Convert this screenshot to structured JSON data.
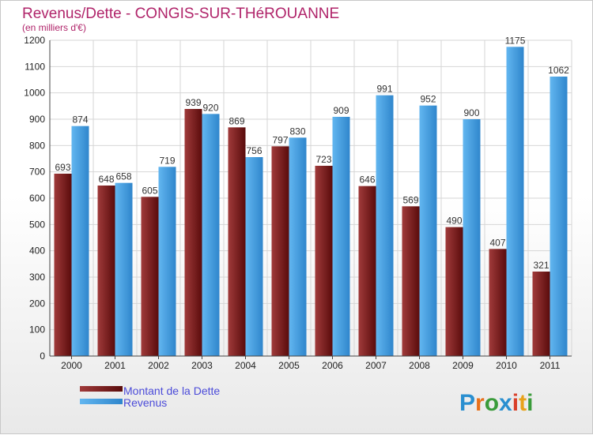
{
  "chart_data": {
    "type": "bar",
    "title": "Revenus/Dette - CONGIS-SUR-THéROUANNE",
    "subtitle": "(en milliers d'€)",
    "categories": [
      "2000",
      "2001",
      "2002",
      "2003",
      "2004",
      "2005",
      "2006",
      "2007",
      "2008",
      "2009",
      "2010",
      "2011"
    ],
    "series": [
      {
        "name": "Montant de la Dette",
        "color": "#7a1a1a",
        "values": [
          693,
          648,
          605,
          939,
          869,
          797,
          723,
          646,
          569,
          490,
          407,
          321
        ]
      },
      {
        "name": "Revenus",
        "color": "#4aa3e6",
        "values": [
          874,
          658,
          719,
          920,
          756,
          830,
          909,
          991,
          952,
          900,
          1175,
          1062
        ]
      }
    ],
    "ylim": [
      0,
      1200
    ],
    "yticks": [
      0,
      100,
      200,
      300,
      400,
      500,
      600,
      700,
      800,
      900,
      1000,
      1100,
      1200
    ],
    "grid": true,
    "legend": "bottom-left"
  },
  "logo": {
    "text": "Proxiti",
    "letters": [
      "P",
      "r",
      "o",
      "x",
      "i",
      "t",
      "i"
    ],
    "colors": [
      "#2a8fd0",
      "#e8701a",
      "#3a9b3a",
      "#2a8fd0",
      "#d9402a",
      "#e8a21a",
      "#3a9b3a"
    ]
  }
}
